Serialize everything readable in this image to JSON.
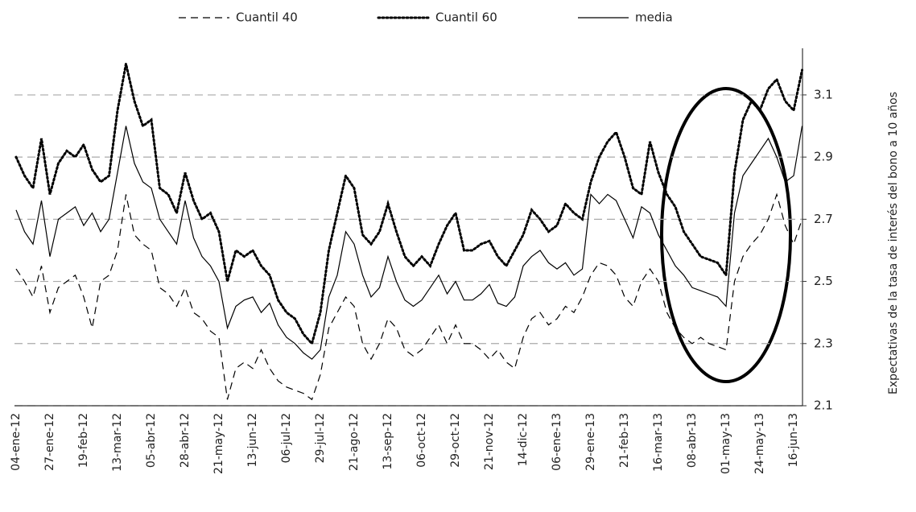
{
  "chart_data": {
    "type": "line",
    "y_axis_label": "Expectativas de la tasa de interés del bono a 10 años",
    "categories": [
      "04-ene-12",
      null,
      null,
      null,
      "27-ene-12",
      null,
      null,
      null,
      "19-feb-12",
      null,
      null,
      null,
      "13-mar-12",
      null,
      null,
      null,
      "05-abr-12",
      null,
      null,
      null,
      "28-abr-12",
      null,
      null,
      null,
      "21-may-12",
      null,
      null,
      null,
      "13-jun-12",
      null,
      null,
      null,
      "06-jul-12",
      null,
      null,
      null,
      "29-jul-12",
      null,
      null,
      null,
      "21-ago-12",
      null,
      null,
      null,
      "13-sep-12",
      null,
      null,
      null,
      "06-oct-12",
      null,
      null,
      null,
      "29-oct-12",
      null,
      null,
      null,
      "21-nov-12",
      null,
      null,
      null,
      "14-dic-12",
      null,
      null,
      null,
      "06-ene-13",
      null,
      null,
      null,
      "29-ene-13",
      null,
      null,
      null,
      "21-feb-13",
      null,
      null,
      null,
      "16-mar-13",
      null,
      null,
      null,
      "08-abr-13",
      null,
      null,
      null,
      "01-may-13",
      null,
      null,
      null,
      "24-may-13",
      null,
      null,
      null,
      "16-jun-13",
      null
    ],
    "series": [
      {
        "name": "Cuantil 40",
        "color": "#000000",
        "style": "dashed",
        "values": [
          2.54,
          2.5,
          2.45,
          2.55,
          2.4,
          2.48,
          2.5,
          2.52,
          2.45,
          2.35,
          2.5,
          2.52,
          2.6,
          2.78,
          2.65,
          2.62,
          2.6,
          2.48,
          2.46,
          2.42,
          2.48,
          2.4,
          2.38,
          2.34,
          2.32,
          2.12,
          2.22,
          2.24,
          2.22,
          2.28,
          2.22,
          2.18,
          2.16,
          2.15,
          2.14,
          2.12,
          2.2,
          2.35,
          2.4,
          2.45,
          2.42,
          2.3,
          2.25,
          2.3,
          2.38,
          2.35,
          2.28,
          2.26,
          2.28,
          2.32,
          2.36,
          2.3,
          2.36,
          2.3,
          2.3,
          2.28,
          2.25,
          2.28,
          2.24,
          2.22,
          2.32,
          2.38,
          2.4,
          2.36,
          2.38,
          2.42,
          2.4,
          2.45,
          2.52,
          2.56,
          2.55,
          2.52,
          2.45,
          2.42,
          2.5,
          2.54,
          2.5,
          2.4,
          2.35,
          2.32,
          2.3,
          2.32,
          2.3,
          2.29,
          2.28,
          2.5,
          2.58,
          2.62,
          2.65,
          2.7,
          2.78,
          2.68,
          2.62,
          2.7
        ]
      },
      {
        "name": "Cuantil 60",
        "color": "#000000",
        "style": "dotted",
        "values": [
          2.9,
          2.84,
          2.8,
          2.96,
          2.78,
          2.88,
          2.92,
          2.9,
          2.94,
          2.86,
          2.82,
          2.84,
          3.05,
          3.2,
          3.08,
          3.0,
          3.02,
          2.8,
          2.78,
          2.72,
          2.85,
          2.76,
          2.7,
          2.72,
          2.66,
          2.5,
          2.6,
          2.58,
          2.6,
          2.55,
          2.52,
          2.44,
          2.4,
          2.38,
          2.33,
          2.3,
          2.4,
          2.6,
          2.72,
          2.84,
          2.8,
          2.65,
          2.62,
          2.66,
          2.75,
          2.66,
          2.58,
          2.55,
          2.58,
          2.55,
          2.62,
          2.68,
          2.72,
          2.6,
          2.6,
          2.62,
          2.63,
          2.58,
          2.55,
          2.6,
          2.65,
          2.73,
          2.7,
          2.66,
          2.68,
          2.75,
          2.72,
          2.7,
          2.82,
          2.9,
          2.95,
          2.98,
          2.9,
          2.8,
          2.78,
          2.95,
          2.85,
          2.78,
          2.74,
          2.66,
          2.62,
          2.58,
          2.57,
          2.56,
          2.52,
          2.85,
          3.02,
          3.08,
          3.05,
          3.12,
          3.15,
          3.08,
          3.05,
          3.18
        ]
      },
      {
        "name": "media",
        "color": "#000000",
        "style": "solid",
        "values": [
          2.73,
          2.66,
          2.62,
          2.76,
          2.58,
          2.7,
          2.72,
          2.74,
          2.68,
          2.72,
          2.66,
          2.7,
          2.85,
          3.0,
          2.88,
          2.82,
          2.8,
          2.7,
          2.66,
          2.62,
          2.76,
          2.64,
          2.58,
          2.55,
          2.5,
          2.35,
          2.42,
          2.44,
          2.45,
          2.4,
          2.43,
          2.36,
          2.32,
          2.3,
          2.27,
          2.25,
          2.28,
          2.45,
          2.52,
          2.66,
          2.62,
          2.52,
          2.45,
          2.48,
          2.58,
          2.5,
          2.44,
          2.42,
          2.44,
          2.48,
          2.52,
          2.46,
          2.5,
          2.44,
          2.44,
          2.46,
          2.49,
          2.43,
          2.42,
          2.45,
          2.55,
          2.58,
          2.6,
          2.56,
          2.54,
          2.56,
          2.52,
          2.54,
          2.78,
          2.75,
          2.78,
          2.76,
          2.7,
          2.64,
          2.74,
          2.72,
          2.65,
          2.6,
          2.55,
          2.52,
          2.48,
          2.47,
          2.46,
          2.45,
          2.42,
          2.72,
          2.84,
          2.88,
          2.92,
          2.96,
          2.9,
          2.82,
          2.84,
          3.0
        ]
      }
    ],
    "ylim": [
      2.1,
      3.25
    ],
    "yticks": [
      2.1,
      2.3,
      2.5,
      2.7,
      2.9,
      3.1
    ],
    "grid": true,
    "y_axis_side": "right",
    "legend": "top"
  }
}
